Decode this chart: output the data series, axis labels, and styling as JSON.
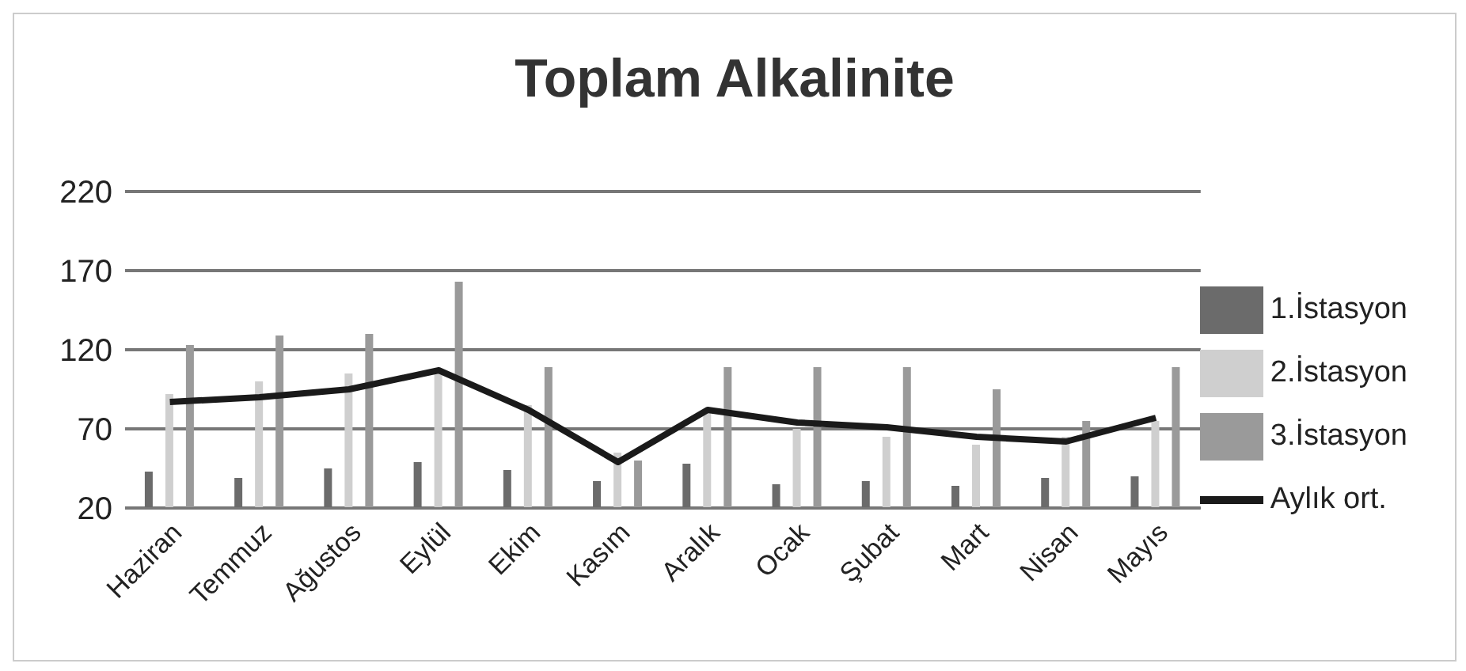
{
  "chart_data": {
    "type": "bar",
    "title": "Toplam Alkalinite",
    "categories": [
      "Haziran",
      "Temmuz",
      "Ağustos",
      "Eylül",
      "Ekim",
      "Kasım",
      "Aralık",
      "Ocak",
      "Şubat",
      "Mart",
      "Nisan",
      "Mayıs"
    ],
    "series": [
      {
        "name": "1.İstasyon",
        "color": "#6b6b6b",
        "values": [
          43,
          39,
          45,
          49,
          44,
          37,
          48,
          35,
          37,
          34,
          39,
          40
        ]
      },
      {
        "name": "2.İstasyon",
        "color": "#cfcfcf",
        "values": [
          92,
          100,
          105,
          105,
          85,
          55,
          80,
          70,
          65,
          60,
          65,
          75
        ]
      },
      {
        "name": "3.İstasyon",
        "color": "#9a9a9a",
        "values": [
          123,
          129,
          130,
          163,
          109,
          50,
          109,
          109,
          109,
          95,
          75,
          109
        ]
      },
      {
        "name": "Aylık ort.",
        "type": "line",
        "color": "#1a1a1a",
        "values": [
          87,
          90,
          95,
          107,
          82,
          49,
          82,
          74,
          71,
          65,
          62,
          77
        ]
      }
    ],
    "ylim": [
      20,
      220
    ],
    "yticks": [
      20,
      70,
      120,
      170,
      220
    ],
    "grid": "y",
    "legend": "right",
    "marker": "none"
  }
}
